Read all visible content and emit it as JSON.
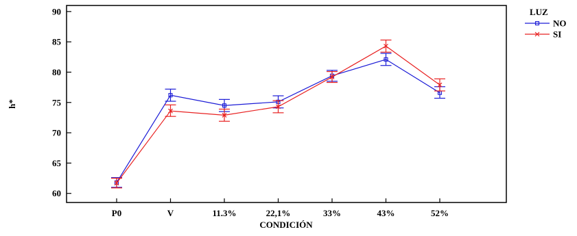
{
  "chart_data": {
    "type": "line",
    "xlabel": "CONDICIÓN",
    "ylabel": "h*",
    "categories": [
      "P0",
      "V",
      "11.3%",
      "22,1%",
      "33%",
      "43%",
      "52%"
    ],
    "ylim": [
      58.5,
      91
    ],
    "yticks": [
      60,
      65,
      70,
      75,
      80,
      85,
      90
    ],
    "grid": false,
    "legend": {
      "title": "LUZ",
      "placement": "top-right"
    },
    "series": [
      {
        "name": "NO",
        "color": "#1a1ad6",
        "marker": "square",
        "values": [
          61.8,
          76.2,
          74.5,
          75.1,
          79.4,
          82.1,
          76.6
        ],
        "err_low": [
          61.0,
          75.2,
          73.5,
          74.1,
          78.5,
          81.1,
          75.7
        ],
        "err_high": [
          62.6,
          77.2,
          75.5,
          76.1,
          80.3,
          83.1,
          77.6
        ]
      },
      {
        "name": "SI",
        "color": "#e82020",
        "marker": "x",
        "values": [
          61.7,
          73.6,
          72.9,
          74.3,
          79.2,
          84.3,
          77.9
        ],
        "err_low": [
          60.9,
          72.7,
          71.9,
          73.3,
          78.3,
          83.3,
          76.9
        ],
        "err_high": [
          62.5,
          74.6,
          73.9,
          75.3,
          80.1,
          85.3,
          78.9
        ]
      }
    ]
  }
}
